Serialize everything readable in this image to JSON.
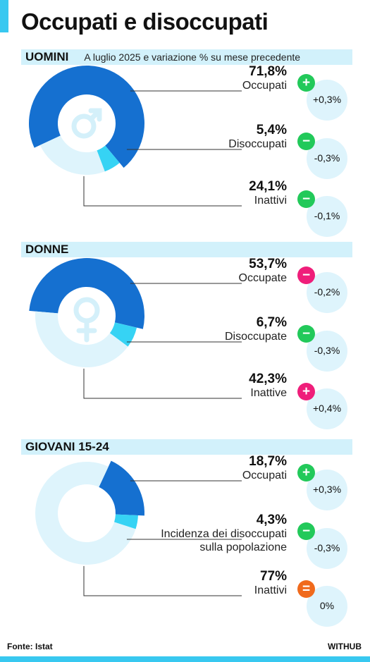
{
  "title": "Occupati e disoccupati",
  "subtitle": "A luglio 2025 e variazione % su mese precedente",
  "source": "Fonte: Istat",
  "brand": "WITHUB",
  "colors": {
    "dark_blue": "#1570d0",
    "cyan": "#36d3f4",
    "light_blue": "#def4fc",
    "increase": "#22c95a",
    "decrease": "#ef1e7a",
    "equal": "#f06a1c"
  },
  "chart_data": [
    {
      "type": "pie",
      "title": "UOMINI",
      "icon": "male-symbol-icon",
      "labels": [
        "Occupati",
        "Disoccupati",
        "Inattivi"
      ],
      "values": [
        71.8,
        5.4,
        24.1
      ],
      "value_labels": [
        "71,8%",
        "5,4%",
        "24,1%"
      ],
      "changes": [
        "+0,3%",
        "-0,3%",
        "-0,1%"
      ],
      "change_signs": [
        "+",
        "−",
        "−"
      ],
      "change_kinds": [
        "increase",
        "increase",
        "increase"
      ],
      "colors": [
        "#1570d0",
        "#36d3f4",
        "#def4fc"
      ],
      "start_angle_deg": 245,
      "thick_index": 0
    },
    {
      "type": "pie",
      "title": "DONNE",
      "icon": "female-symbol-icon",
      "labels": [
        "Occupate",
        "Disoccupate",
        "Inattive"
      ],
      "values": [
        53.7,
        6.7,
        42.3
      ],
      "value_labels": [
        "53,7%",
        "6,7%",
        "42,3%"
      ],
      "changes": [
        "-0,2%",
        "-0,3%",
        "+0,4%"
      ],
      "change_signs": [
        "−",
        "−",
        "+"
      ],
      "change_kinds": [
        "decrease",
        "increase",
        "decrease"
      ],
      "colors": [
        "#1570d0",
        "#36d3f4",
        "#def4fc"
      ],
      "start_angle_deg": 275,
      "thick_index": 0
    },
    {
      "type": "pie",
      "title": "GIOVANI 15-24",
      "icon": "",
      "labels": [
        "Occupati",
        "Incidenza dei disoccupati sulla popolazione",
        "Inattivi"
      ],
      "label_lines": [
        [
          "Occupati"
        ],
        [
          "Incidenza dei disoccupati",
          "sulla popolazione"
        ],
        [
          "Inattivi"
        ]
      ],
      "values": [
        18.7,
        4.3,
        77
      ],
      "value_labels": [
        "18,7%",
        "4,3%",
        "77%"
      ],
      "changes": [
        "+0,3%",
        "-0,3%",
        "0%"
      ],
      "change_signs": [
        "+",
        "−",
        "="
      ],
      "change_kinds": [
        "increase",
        "increase",
        "equal"
      ],
      "colors": [
        "#1570d0",
        "#36d3f4",
        "#def4fc"
      ],
      "start_angle_deg": 25,
      "thick_index": 0
    }
  ]
}
